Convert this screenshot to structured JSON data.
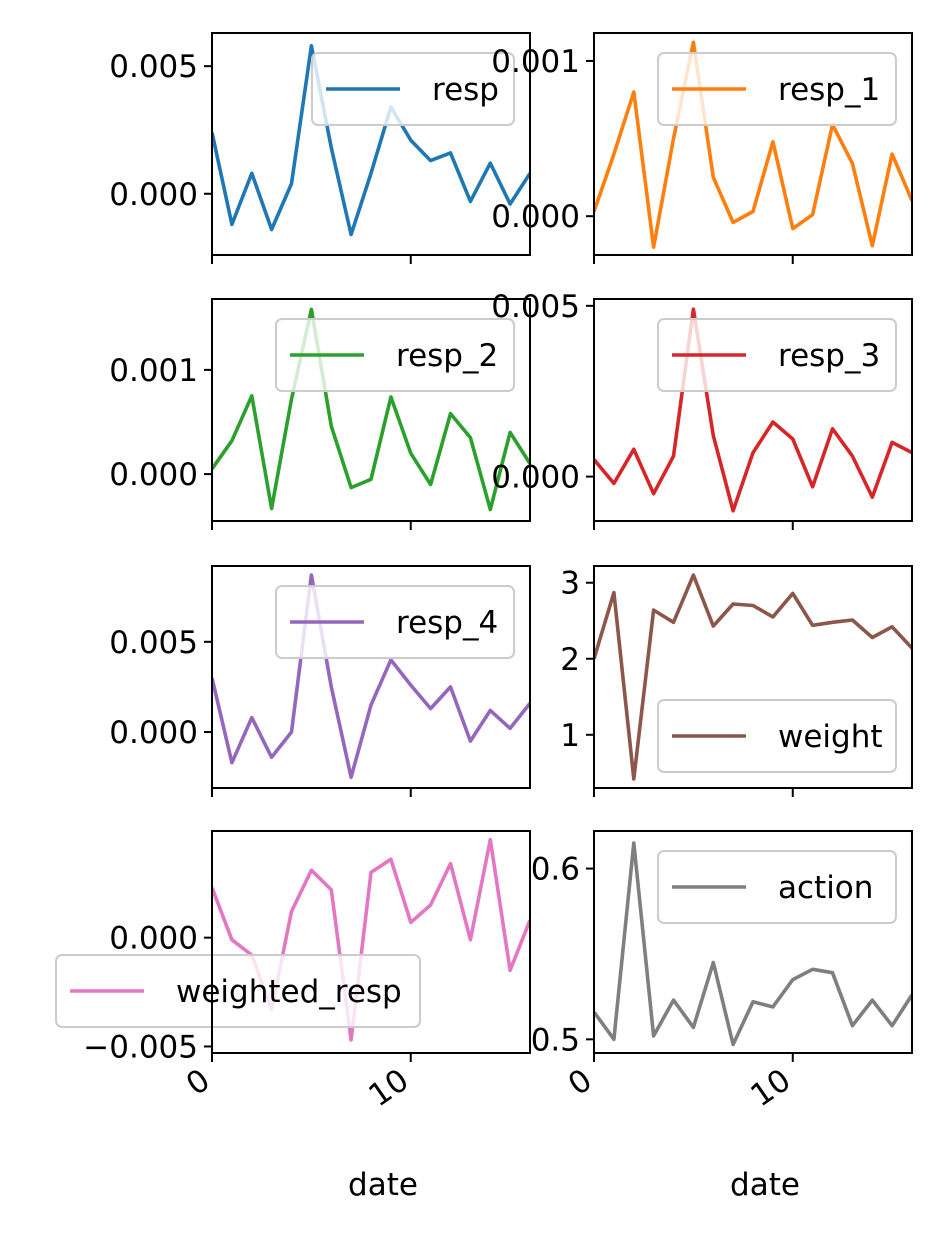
{
  "figure": {
    "xlabel": "date"
  },
  "chart_data": [
    {
      "type": "line",
      "series": [
        {
          "name": "resp",
          "color": "#1f77b4",
          "x": [
            0,
            1,
            2,
            3,
            4,
            5,
            6,
            7,
            8,
            9,
            10,
            11,
            12,
            13,
            14,
            15,
            16
          ],
          "values": [
            0.0024,
            -0.0012,
            0.0008,
            -0.0014,
            0.0004,
            0.0058,
            0.0018,
            -0.0016,
            0.0008,
            0.0034,
            0.0021,
            0.0013,
            0.0016,
            -0.0003,
            0.0012,
            -0.0004,
            0.0008
          ]
        }
      ],
      "xlim": [
        0,
        16
      ],
      "ylim": [
        -0.0024,
        0.0063
      ],
      "yticks": [
        0,
        0.005
      ],
      "ytick_labels": [
        "0.000",
        "0.005"
      ],
      "xticks": [
        0,
        10
      ],
      "xtick_labels": [
        "",
        ""
      ],
      "legend": "top-right",
      "grid": false
    },
    {
      "type": "line",
      "series": [
        {
          "name": "resp_1",
          "color": "#ff7f0e",
          "x": [
            0,
            1,
            2,
            3,
            4,
            5,
            6,
            7,
            8,
            9,
            10,
            11,
            12,
            13,
            14,
            15,
            16
          ],
          "values": [
            3e-05,
            0.0004,
            0.0008,
            -0.0002,
            0.0005,
            0.00112,
            0.00025,
            -4e-05,
            3e-05,
            0.00048,
            -8e-05,
            1e-05,
            0.00059,
            0.00034,
            -0.00019,
            0.0004,
            0.0001
          ]
        }
      ],
      "xlim": [
        0,
        16
      ],
      "ylim": [
        -0.00025,
        0.00118
      ],
      "yticks": [
        0,
        0.001
      ],
      "ytick_labels": [
        "0.000",
        "0.001"
      ],
      "xticks": [
        0,
        10
      ],
      "xtick_labels": [
        "",
        ""
      ],
      "legend": "top-right",
      "grid": false
    },
    {
      "type": "line",
      "series": [
        {
          "name": "resp_2",
          "color": "#2ca02c",
          "x": [
            0,
            1,
            2,
            3,
            4,
            5,
            6,
            7,
            8,
            9,
            10,
            11,
            12,
            13,
            14,
            15,
            16
          ],
          "values": [
            5e-05,
            0.00032,
            0.00075,
            -0.00033,
            0.00072,
            0.00158,
            0.00046,
            -0.00013,
            -5e-05,
            0.00074,
            0.0002,
            -0.0001,
            0.00058,
            0.00035,
            -0.00034,
            0.0004,
            0.0001
          ]
        }
      ],
      "xlim": [
        0,
        16
      ],
      "ylim": [
        -0.00045,
        0.00168
      ],
      "yticks": [
        0,
        0.001
      ],
      "ytick_labels": [
        "0.000",
        "0.001"
      ],
      "xticks": [
        0,
        10
      ],
      "xtick_labels": [
        "",
        ""
      ],
      "legend": "top-right",
      "grid": false
    },
    {
      "type": "line",
      "series": [
        {
          "name": "resp_3",
          "color": "#d62728",
          "x": [
            0,
            1,
            2,
            3,
            4,
            5,
            6,
            7,
            8,
            9,
            10,
            11,
            12,
            13,
            14,
            15,
            16
          ],
          "values": [
            0.0005,
            -0.0002,
            0.0008,
            -0.0005,
            0.0006,
            0.0049,
            0.0012,
            -0.001,
            0.0007,
            0.0016,
            0.0011,
            -0.0003,
            0.0014,
            0.0006,
            -0.0006,
            0.001,
            0.0007
          ]
        }
      ],
      "xlim": [
        0,
        16
      ],
      "ylim": [
        -0.0013,
        0.0052
      ],
      "yticks": [
        0,
        0.005
      ],
      "ytick_labels": [
        "0.000",
        "0.005"
      ],
      "xticks": [
        0,
        10
      ],
      "xtick_labels": [
        "",
        ""
      ],
      "legend": "top-right",
      "grid": false
    },
    {
      "type": "line",
      "series": [
        {
          "name": "resp_4",
          "color": "#9467bd",
          "x": [
            0,
            1,
            2,
            3,
            4,
            5,
            6,
            7,
            8,
            9,
            10,
            11,
            12,
            13,
            14,
            15,
            16
          ],
          "values": [
            0.003,
            -0.0017,
            0.0008,
            -0.0014,
            0.0,
            0.0087,
            0.0025,
            -0.0025,
            0.0015,
            0.004,
            0.0026,
            0.0013,
            0.0025,
            -0.0005,
            0.0012,
            0.0002,
            0.0016
          ]
        }
      ],
      "xlim": [
        0,
        16
      ],
      "ylim": [
        -0.0031,
        0.0092
      ],
      "yticks": [
        0,
        0.005
      ],
      "ytick_labels": [
        "0.000",
        "0.005"
      ],
      "xticks": [
        0,
        10
      ],
      "xtick_labels": [
        "",
        ""
      ],
      "legend": "top-right",
      "grid": false
    },
    {
      "type": "line",
      "series": [
        {
          "name": "weight",
          "color": "#8c564b",
          "x": [
            0,
            1,
            2,
            3,
            4,
            5,
            6,
            7,
            8,
            9,
            10,
            11,
            12,
            13,
            14,
            15,
            16
          ],
          "values": [
            2.0,
            2.87,
            0.42,
            2.64,
            2.48,
            3.1,
            2.43,
            2.72,
            2.7,
            2.55,
            2.86,
            2.44,
            2.48,
            2.51,
            2.28,
            2.42,
            2.14
          ]
        }
      ],
      "xlim": [
        0,
        16
      ],
      "ylim": [
        0.3,
        3.22
      ],
      "yticks": [
        1,
        2,
        3
      ],
      "ytick_labels": [
        "1",
        "2",
        "3"
      ],
      "xticks": [
        0,
        10
      ],
      "xtick_labels": [
        "",
        ""
      ],
      "legend": "bottom-right",
      "grid": false
    },
    {
      "type": "line",
      "series": [
        {
          "name": "weighted_resp",
          "color": "#e377c2",
          "x": [
            0,
            1,
            2,
            3,
            4,
            5,
            6,
            7,
            8,
            9,
            10,
            11,
            12,
            13,
            14,
            15,
            16
          ],
          "values": [
            0.0023,
            -0.0001,
            -0.0008,
            -0.0033,
            0.0012,
            0.0031,
            0.0022,
            -0.0047,
            0.003,
            0.0036,
            0.0007,
            0.0015,
            0.0034,
            -0.0001,
            0.0045,
            -0.0015,
            0.0008
          ]
        }
      ],
      "xlim": [
        0,
        16
      ],
      "ylim": [
        -0.0053,
        0.0049
      ],
      "yticks": [
        -0.005,
        0
      ],
      "ytick_labels": [
        "−0.005",
        "0.000"
      ],
      "xticks": [
        0,
        10
      ],
      "xtick_labels": [
        "0",
        "10"
      ],
      "xlabel": "date",
      "legend": "bottom-left",
      "grid": false
    },
    {
      "type": "line",
      "series": [
        {
          "name": "action",
          "color": "#7f7f7f",
          "x": [
            0,
            1,
            2,
            3,
            4,
            5,
            6,
            7,
            8,
            9,
            10,
            11,
            12,
            13,
            14,
            15,
            16
          ],
          "values": [
            0.516,
            0.5,
            0.615,
            0.502,
            0.523,
            0.507,
            0.545,
            0.497,
            0.522,
            0.519,
            0.535,
            0.541,
            0.539,
            0.508,
            0.523,
            0.508,
            0.526
          ]
        }
      ],
      "xlim": [
        0,
        16
      ],
      "ylim": [
        0.492,
        0.622
      ],
      "yticks": [
        0.5,
        0.6
      ],
      "ytick_labels": [
        "0.5",
        "0.6"
      ],
      "xticks": [
        0,
        10
      ],
      "xtick_labels": [
        "0",
        "10"
      ],
      "xlabel": "date",
      "legend": "top-right",
      "grid": false
    }
  ]
}
